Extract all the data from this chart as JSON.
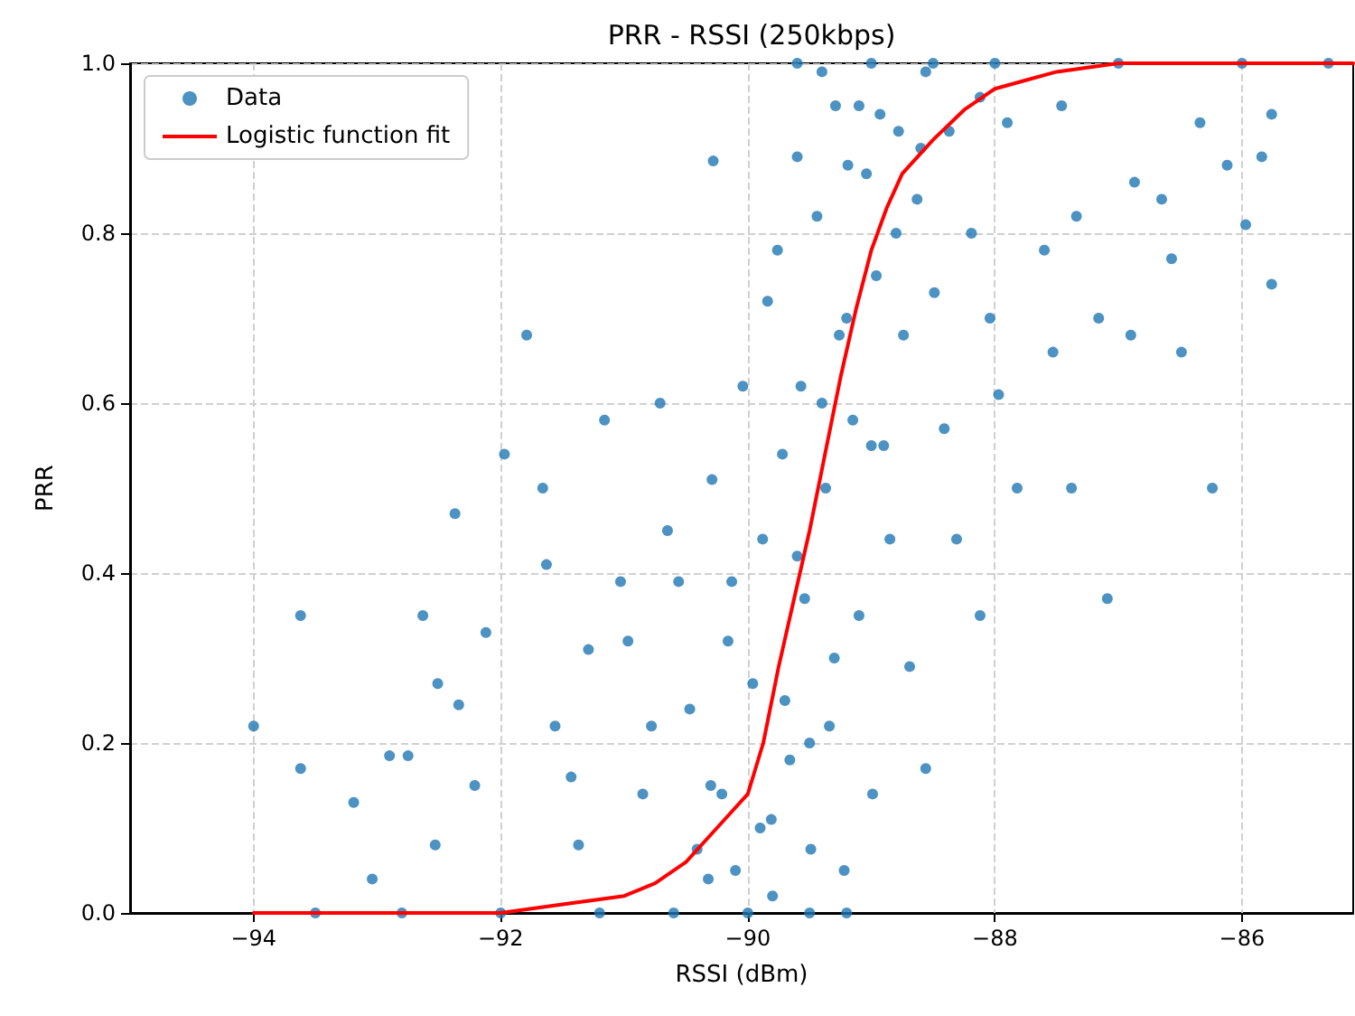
{
  "chart_data": {
    "type": "scatter",
    "title": "PRR - RSSI (250kbps)",
    "xlabel": "RSSI (dBm)",
    "ylabel": "PRR",
    "xlim": [
      -95,
      -85.1
    ],
    "ylim": [
      0,
      1
    ],
    "xticks": [
      {
        "value": -94,
        "label": "−94"
      },
      {
        "value": -92,
        "label": "−92"
      },
      {
        "value": -90,
        "label": "−90"
      },
      {
        "value": -88,
        "label": "−88"
      },
      {
        "value": -86,
        "label": "−86"
      }
    ],
    "yticks": [
      {
        "value": 0,
        "label": "0.0"
      },
      {
        "value": 0.2,
        "label": "0.2"
      },
      {
        "value": 0.4,
        "label": "0.4"
      },
      {
        "value": 0.6,
        "label": "0.6"
      },
      {
        "value": 0.8,
        "label": "0.8"
      },
      {
        "value": 1,
        "label": "1.0"
      }
    ],
    "grid": true,
    "legend": "top left",
    "series": [
      {
        "name": "Data",
        "marker": "circle",
        "color": "#1f77b4",
        "x": [
          -94.0,
          -93.62,
          -93.62,
          -93.19,
          -93.04,
          -92.9,
          -92.75,
          -92.63,
          -92.51,
          -92.37,
          -92.34,
          -92.53,
          -92.21,
          -92.12,
          -91.97,
          -91.79,
          -91.66,
          -91.63,
          -91.56,
          -91.43,
          -91.37,
          -91.29,
          -91.16,
          -91.03,
          -90.97,
          -90.85,
          -90.78,
          -90.71,
          -90.65,
          -90.56,
          -90.47,
          -90.41,
          -90.29,
          -90.21,
          -90.13,
          -90.04,
          -90.28,
          -90.16,
          -90.32,
          -89.96,
          -89.88,
          -89.84,
          -89.81,
          -89.76,
          -89.72,
          -89.66,
          -89.6,
          -89.57,
          -89.54,
          -89.49,
          -89.44,
          -89.4,
          -89.37,
          -89.34,
          -89.29,
          -89.26,
          -89.22,
          -89.19,
          -89.15,
          -89.1,
          -89.04,
          -88.99,
          -88.96,
          -88.93,
          -88.9,
          -88.85,
          -88.78,
          -88.74,
          -88.69,
          -88.63,
          -88.56,
          -88.49,
          -88.41,
          -88.37,
          -88.31,
          -88.19,
          -88.12,
          -88.04,
          -87.97,
          -87.9,
          -87.82,
          -87.6,
          -87.53,
          -87.46,
          -87.38,
          -87.34,
          -87.16,
          -87.09,
          -86.9,
          -86.87,
          -86.65,
          -86.57,
          -86.49,
          -86.34,
          -86.24,
          -86.12,
          -85.97,
          -85.84,
          -85.76,
          -85.76,
          -88.12,
          -88.56,
          -90.1,
          -89.9,
          -89.8,
          -90.3,
          -89.7,
          -89.5,
          -89.3,
          -89.6,
          -89.4,
          -89.2,
          -89.0,
          -88.8,
          -88.6,
          -89.1,
          -93.5,
          -92.8,
          -92.0,
          -91.2,
          -90.6,
          -90.0,
          -89.5,
          -89.2,
          -89.6,
          -89.0,
          -88.5,
          -88.0,
          -87.0,
          -86.0,
          -85.3
        ],
        "values": [
          0.22,
          0.35,
          0.17,
          0.13,
          0.04,
          0.185,
          0.185,
          0.35,
          0.27,
          0.47,
          0.245,
          0.08,
          0.15,
          0.33,
          0.54,
          0.68,
          0.5,
          0.41,
          0.22,
          0.16,
          0.08,
          0.31,
          0.58,
          0.39,
          0.32,
          0.14,
          0.22,
          0.6,
          0.45,
          0.39,
          0.24,
          0.075,
          0.51,
          0.14,
          0.39,
          0.62,
          0.885,
          0.32,
          0.04,
          0.27,
          0.44,
          0.72,
          0.11,
          0.78,
          0.54,
          0.18,
          0.89,
          0.62,
          0.37,
          0.075,
          0.82,
          0.99,
          0.5,
          0.22,
          0.95,
          0.68,
          0.05,
          0.88,
          0.58,
          0.35,
          0.87,
          0.14,
          0.75,
          0.94,
          0.55,
          0.44,
          0.92,
          0.68,
          0.29,
          0.84,
          0.99,
          0.73,
          0.57,
          0.92,
          0.44,
          0.8,
          0.96,
          0.7,
          0.61,
          0.93,
          0.5,
          0.78,
          0.66,
          0.95,
          0.5,
          0.82,
          0.7,
          0.37,
          0.68,
          0.86,
          0.84,
          0.77,
          0.66,
          0.93,
          0.5,
          0.88,
          0.81,
          0.89,
          0.94,
          0.74,
          0.35,
          0.17,
          0.05,
          0.1,
          0.02,
          0.15,
          0.25,
          0.2,
          0.3,
          0.42,
          0.6,
          0.7,
          0.55,
          0.8,
          0.9,
          0.95,
          0,
          0,
          0,
          0,
          0,
          0,
          0,
          0,
          1,
          1,
          1,
          1,
          1,
          1,
          1
        ]
      },
      {
        "name": "Logistic function fit",
        "type": "line",
        "marker": "none",
        "line_style": "solid",
        "color": "#ff0000",
        "x": [
          -94,
          -93,
          -92,
          -91.5,
          -91,
          -90.75,
          -90.5,
          -90.25,
          -90,
          -89.875,
          -89.75,
          -89.625,
          -89.5,
          -89.375,
          -89.25,
          -89.125,
          -89,
          -88.875,
          -88.75,
          -88.5,
          -88.25,
          -88,
          -87.75,
          -87.5,
          -87,
          -86,
          -85.1
        ],
        "values": [
          0,
          0,
          0,
          0.01,
          0.02,
          0.035,
          0.06,
          0.1,
          0.14,
          0.2,
          0.29,
          0.37,
          0.45,
          0.54,
          0.63,
          0.71,
          0.78,
          0.83,
          0.87,
          0.91,
          0.945,
          0.97,
          0.98,
          0.99,
          1,
          1,
          1
        ]
      }
    ]
  }
}
